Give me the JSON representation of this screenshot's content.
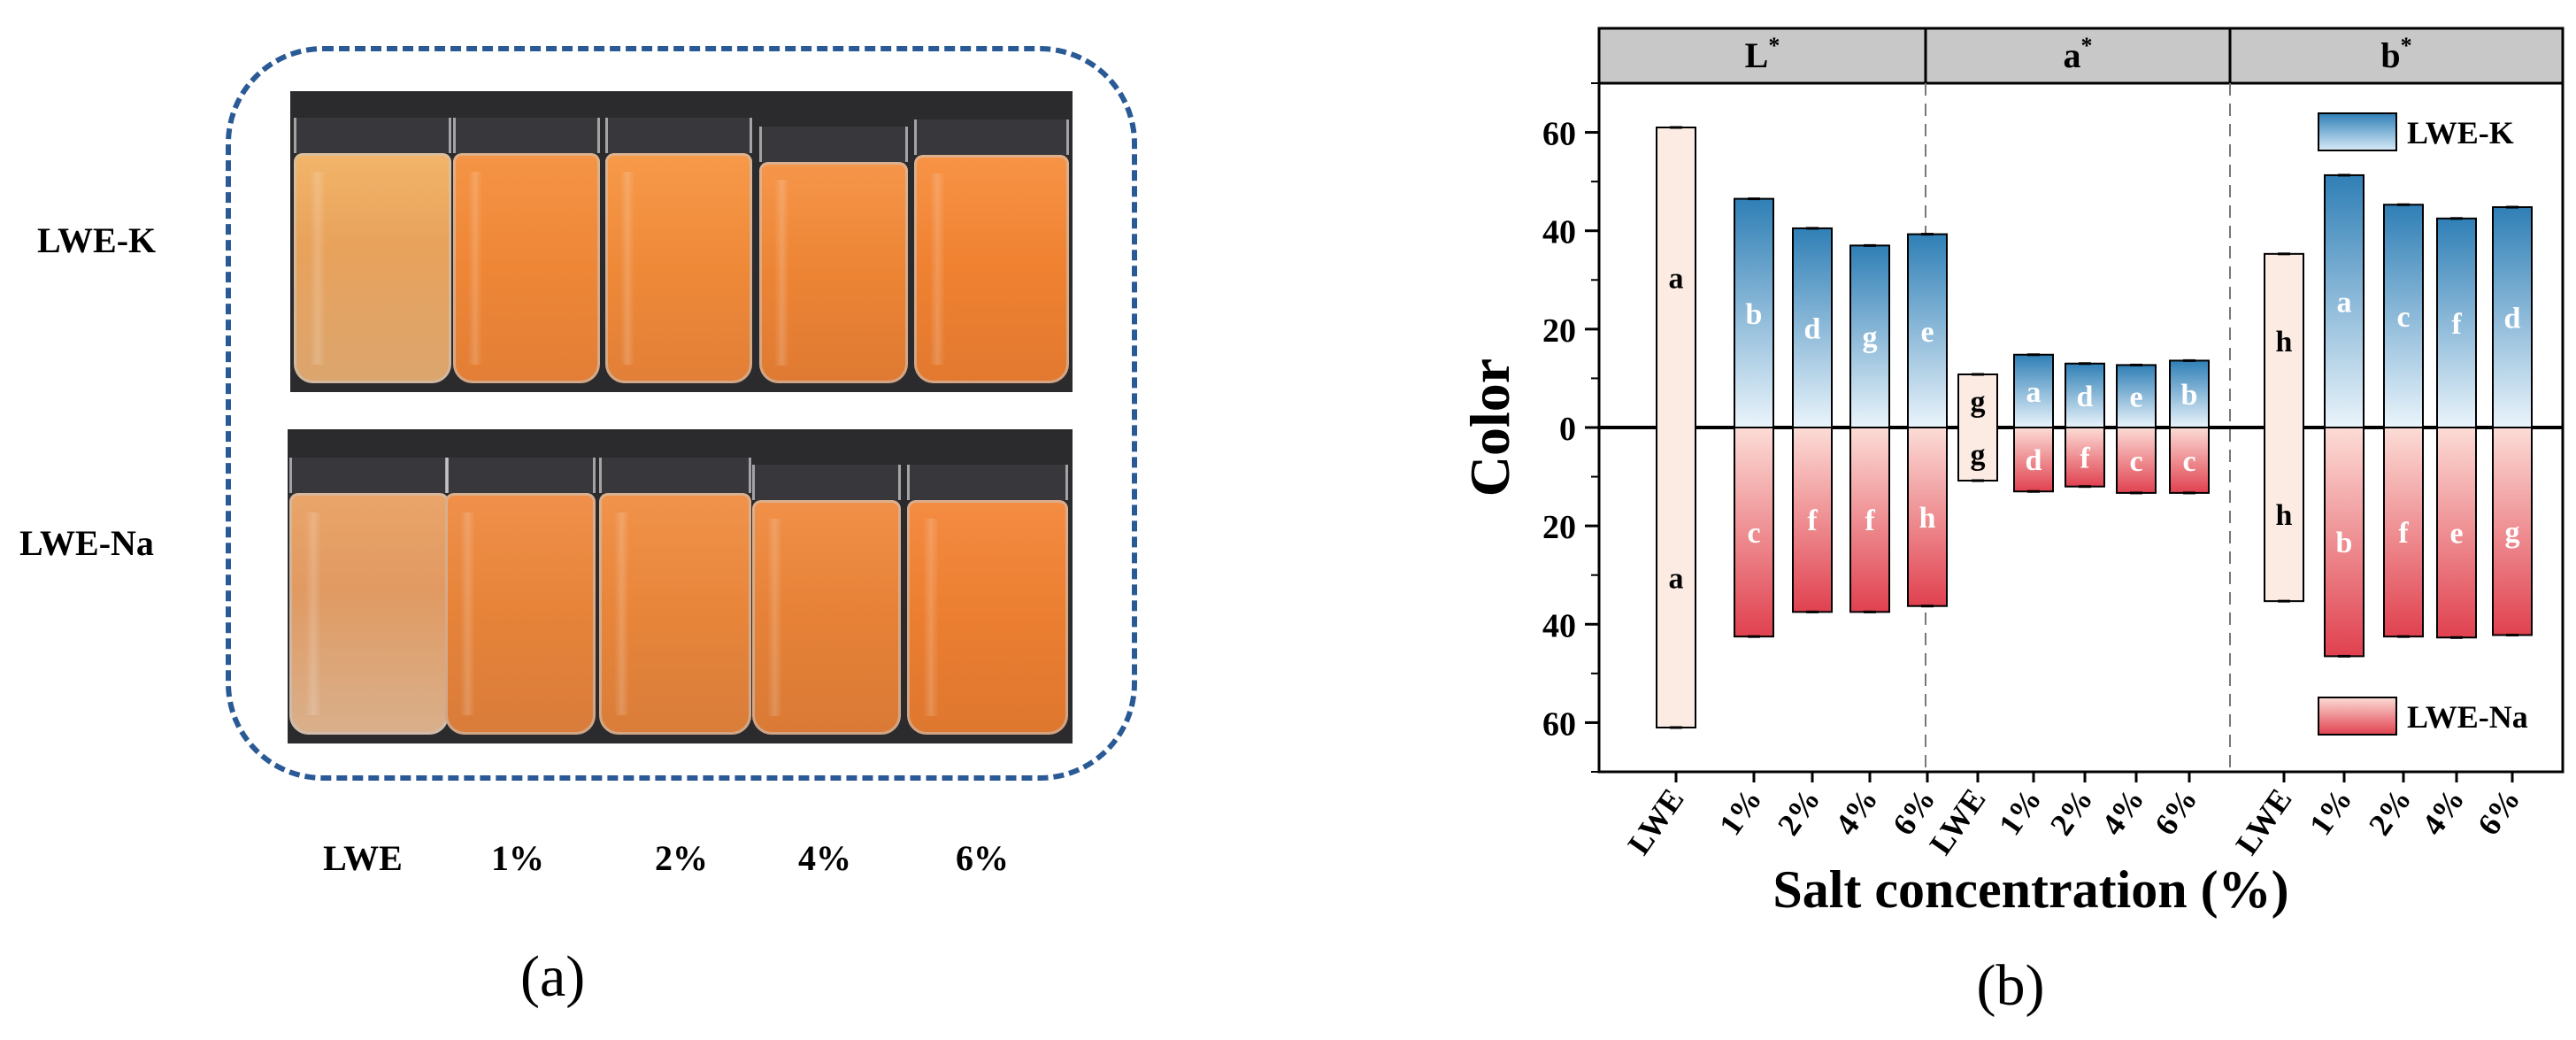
{
  "panel_a": {
    "sub_label": "(a)",
    "row_labels": [
      "LWE-K",
      "LWE-Na"
    ],
    "column_labels": [
      "LWE",
      "1%",
      "2%",
      "4%",
      "6%"
    ],
    "colors": {
      "frame": "#2a5a95",
      "photo_bg": "#2b2b2e"
    }
  },
  "panel_b": {
    "sub_label": "(b)"
  },
  "chart_data": {
    "type": "bar",
    "title": "",
    "xlabel": "Salt concentration (%)",
    "ylabel": "Color",
    "ylim": [
      -70,
      70
    ],
    "yticks": [
      -60,
      -40,
      -20,
      0,
      20,
      40,
      60
    ],
    "ytick_labels": [
      "60",
      "40",
      "20",
      "0",
      "20",
      "40",
      "60"
    ],
    "categories": [
      "LWE",
      "1%",
      "2%",
      "4%",
      "6%"
    ],
    "panels": [
      {
        "name": "L",
        "label": "L*",
        "LWE": {
          "value": 61,
          "letter": "a"
        },
        "K": {
          "values": [
            46.5,
            40.5,
            37,
            39.3
          ],
          "letters": [
            "b",
            "d",
            "g",
            "e"
          ]
        },
        "Na": {
          "values": [
            42.5,
            37.5,
            37.5,
            36.3
          ],
          "letters": [
            "c",
            "f",
            "f",
            "h"
          ]
        }
      },
      {
        "name": "a",
        "label": "a*",
        "LWE": {
          "value": 10.8,
          "letter": "g"
        },
        "K": {
          "values": [
            14.8,
            13,
            12.7,
            13.6
          ],
          "letters": [
            "a",
            "d",
            "e",
            "b"
          ]
        },
        "Na": {
          "values": [
            13,
            12,
            13.3,
            13.3
          ],
          "letters": [
            "d",
            "f",
            "c",
            "c"
          ]
        }
      },
      {
        "name": "b",
        "label": "b*",
        "LWE": {
          "value": 35.3,
          "letter": "h"
        },
        "K": {
          "values": [
            51.3,
            45.3,
            42.5,
            44.8
          ],
          "letters": [
            "a",
            "c",
            "f",
            "d"
          ]
        },
        "Na": {
          "values": [
            46.5,
            42.5,
            42.7,
            42.2
          ],
          "letters": [
            "b",
            "f",
            "e",
            "g"
          ]
        }
      }
    ],
    "legend": {
      "series": [
        "LWE-K",
        "LWE-Na"
      ],
      "placement": [
        "top-right",
        "bottom-right"
      ]
    },
    "colors": {
      "k_top": "#2f7fb6",
      "k_bottom": "#e9f3fb",
      "na_top": "#fbd5cf",
      "na_bottom": "#e0414f",
      "lwe_fill": "#fcebe3",
      "header_fill": "#c8c8c8"
    }
  }
}
